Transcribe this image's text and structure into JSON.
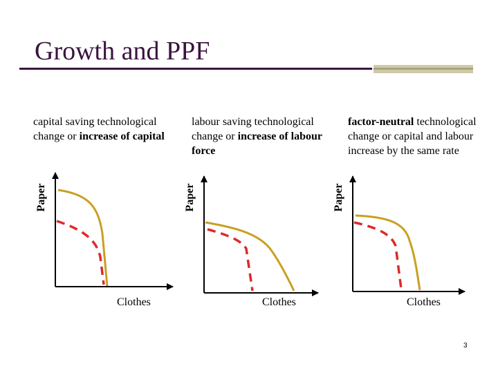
{
  "slide": {
    "title": "Growth and PPF",
    "page_number": "3"
  },
  "panels": [
    {
      "caption_parts": [
        {
          "text": "capital saving technological change or ",
          "bold": false
        },
        {
          "text": "increase of capital",
          "bold": true
        }
      ],
      "y_axis_label": "Paper",
      "x_axis_label": "Clothes"
    },
    {
      "caption_parts": [
        {
          "text": "labour saving technological change or ",
          "bold": false
        },
        {
          "text": "increase of labour force",
          "bold": true
        }
      ],
      "y_axis_label": "Paper",
      "x_axis_label": "Clothes"
    },
    {
      "caption_parts": [
        {
          "text": "factor-neutral",
          "bold": true
        },
        {
          "text": " technological change or capital and labour increase by the same rate",
          "bold": false
        }
      ],
      "y_axis_label": "Paper",
      "x_axis_label": "Clothes"
    }
  ],
  "colors": {
    "title": "#3a1340",
    "new_ppf_curve": "#c8a020",
    "old_ppf_curve": "#dd2a2a",
    "axis": "#000000",
    "accent_bar": "#cfcaa8"
  }
}
